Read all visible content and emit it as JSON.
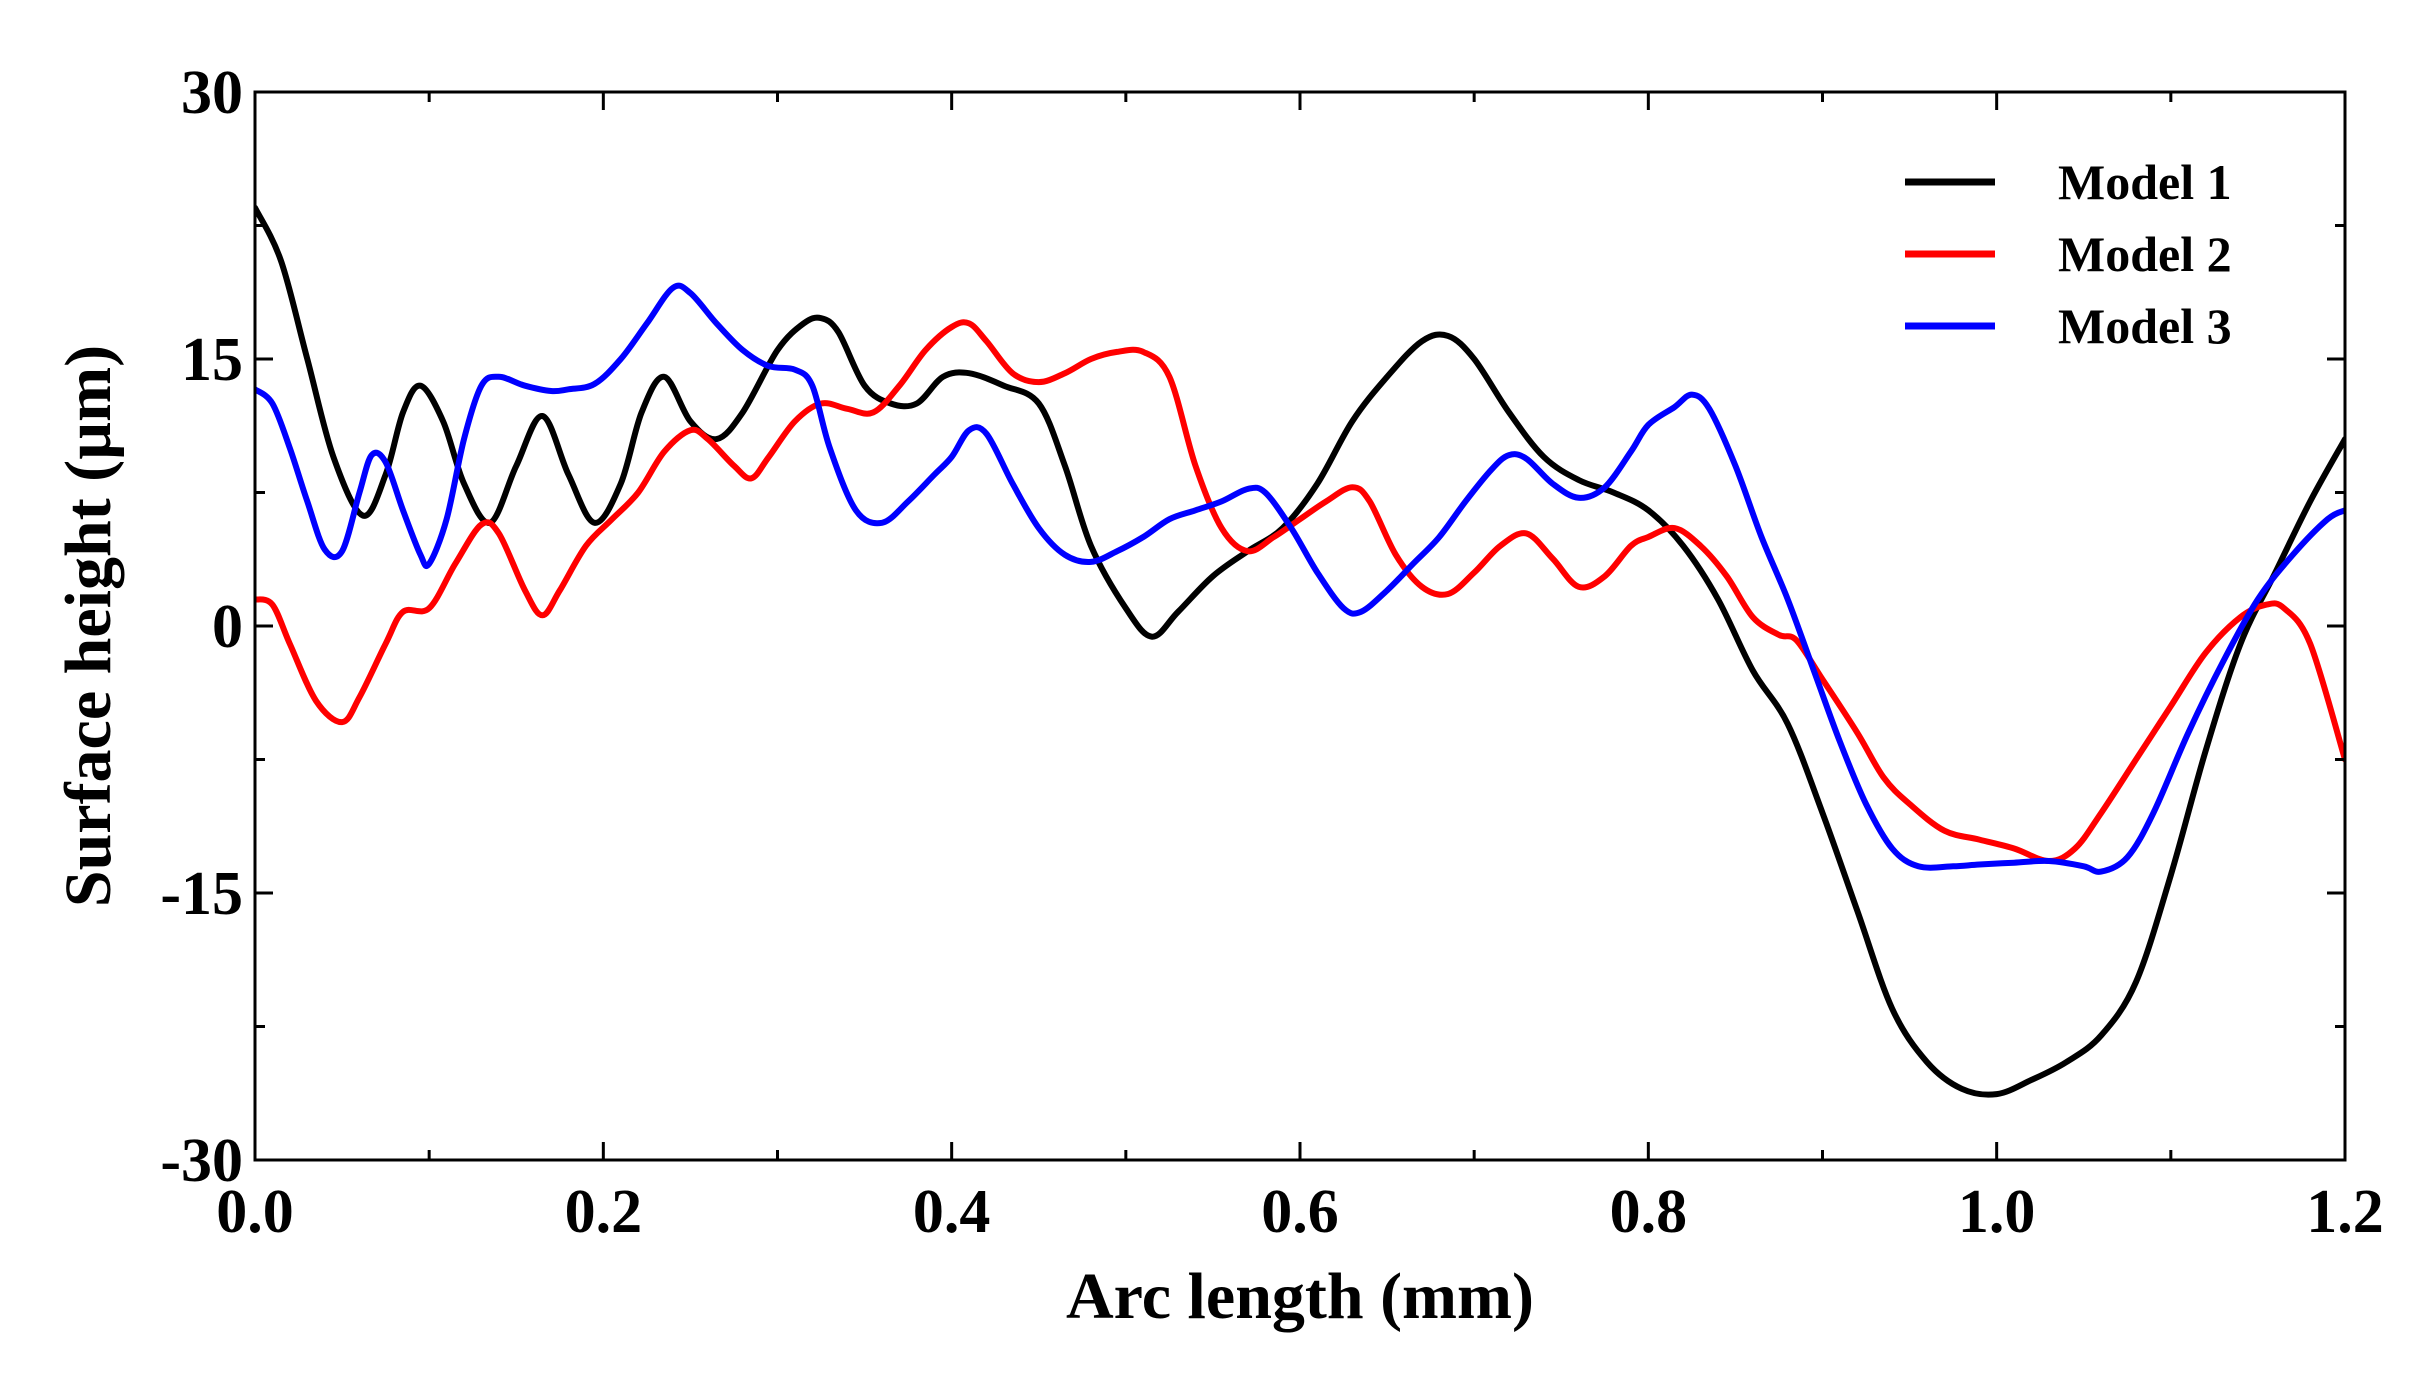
{
  "chart_data": {
    "type": "line",
    "title": "",
    "xlabel": "Arc length (mm)",
    "ylabel": "Surface height (µm)",
    "xlim": [
      0.0,
      1.2
    ],
    "ylim": [
      -30,
      30
    ],
    "xticks": [
      0.0,
      0.2,
      0.4,
      0.6,
      0.8,
      1.0,
      1.2
    ],
    "xtick_labels": [
      "0.0",
      "0.2",
      "0.4",
      "0.6",
      "0.8",
      "1.0",
      "1.2"
    ],
    "yticks": [
      -30,
      -15,
      0,
      15,
      30
    ],
    "ytick_labels": [
      "-30",
      "-15",
      "0",
      "15",
      "30"
    ],
    "grid": false,
    "legend_position": "top-right",
    "series": [
      {
        "name": "Model 1",
        "color": "#000000",
        "points": [
          [
            0.0,
            23.5
          ],
          [
            0.015,
            20.5
          ],
          [
            0.03,
            15
          ],
          [
            0.045,
            9.5
          ],
          [
            0.062,
            6.2
          ],
          [
            0.075,
            8.5
          ],
          [
            0.085,
            12.0
          ],
          [
            0.095,
            13.5
          ],
          [
            0.108,
            11.5
          ],
          [
            0.12,
            8
          ],
          [
            0.135,
            5.8
          ],
          [
            0.15,
            9
          ],
          [
            0.165,
            11.8
          ],
          [
            0.18,
            8.5
          ],
          [
            0.195,
            5.8
          ],
          [
            0.21,
            8
          ],
          [
            0.222,
            12.0
          ],
          [
            0.235,
            14.0
          ],
          [
            0.25,
            11.5
          ],
          [
            0.265,
            10.5
          ],
          [
            0.28,
            12
          ],
          [
            0.3,
            15.5
          ],
          [
            0.315,
            17.0
          ],
          [
            0.325,
            17.3
          ],
          [
            0.335,
            16.5
          ],
          [
            0.35,
            13.5
          ],
          [
            0.365,
            12.5
          ],
          [
            0.38,
            12.5
          ],
          [
            0.395,
            14
          ],
          [
            0.41,
            14.2
          ],
          [
            0.43,
            13.5
          ],
          [
            0.45,
            12.5
          ],
          [
            0.465,
            9
          ],
          [
            0.48,
            4.5
          ],
          [
            0.5,
            1.0
          ],
          [
            0.515,
            -0.6
          ],
          [
            0.53,
            0.8
          ],
          [
            0.55,
            2.8
          ],
          [
            0.57,
            4.2
          ],
          [
            0.59,
            5.5
          ],
          [
            0.61,
            8
          ],
          [
            0.63,
            11.5
          ],
          [
            0.65,
            14
          ],
          [
            0.67,
            16
          ],
          [
            0.685,
            16.3
          ],
          [
            0.7,
            15
          ],
          [
            0.72,
            12
          ],
          [
            0.74,
            9.5
          ],
          [
            0.76,
            8.2
          ],
          [
            0.78,
            7.5
          ],
          [
            0.8,
            6.5
          ],
          [
            0.82,
            4.5
          ],
          [
            0.84,
            1.5
          ],
          [
            0.86,
            -2.5
          ],
          [
            0.88,
            -5.5
          ],
          [
            0.9,
            -10.5
          ],
          [
            0.92,
            -16
          ],
          [
            0.94,
            -21.5
          ],
          [
            0.96,
            -24.5
          ],
          [
            0.98,
            -26.0
          ],
          [
            1.0,
            -26.3
          ],
          [
            1.02,
            -25.5
          ],
          [
            1.04,
            -24.5
          ],
          [
            1.06,
            -23
          ],
          [
            1.08,
            -20
          ],
          [
            1.1,
            -14
          ],
          [
            1.12,
            -7
          ],
          [
            1.14,
            -1
          ],
          [
            1.16,
            3
          ],
          [
            1.18,
            7
          ],
          [
            1.2,
            10.5
          ]
        ]
      },
      {
        "name": "Model 2",
        "color": "#ff0000",
        "points": [
          [
            0.0,
            1.5
          ],
          [
            0.01,
            1.2
          ],
          [
            0.02,
            -1
          ],
          [
            0.035,
            -4.2
          ],
          [
            0.05,
            -5.4
          ],
          [
            0.06,
            -4
          ],
          [
            0.075,
            -1
          ],
          [
            0.085,
            0.8
          ],
          [
            0.1,
            1.0
          ],
          [
            0.115,
            3.5
          ],
          [
            0.13,
            5.7
          ],
          [
            0.14,
            5.2
          ],
          [
            0.155,
            2
          ],
          [
            0.165,
            0.6
          ],
          [
            0.175,
            2
          ],
          [
            0.19,
            4.5
          ],
          [
            0.205,
            6.0
          ],
          [
            0.22,
            7.5
          ],
          [
            0.235,
            9.8
          ],
          [
            0.25,
            11.0
          ],
          [
            0.26,
            10.5
          ],
          [
            0.275,
            9
          ],
          [
            0.285,
            8.3
          ],
          [
            0.295,
            9.5
          ],
          [
            0.31,
            11.5
          ],
          [
            0.325,
            12.5
          ],
          [
            0.34,
            12.2
          ],
          [
            0.355,
            12
          ],
          [
            0.37,
            13.5
          ],
          [
            0.385,
            15.5
          ],
          [
            0.4,
            16.8
          ],
          [
            0.41,
            17.0
          ],
          [
            0.42,
            16.0
          ],
          [
            0.435,
            14.2
          ],
          [
            0.45,
            13.7
          ],
          [
            0.465,
            14.2
          ],
          [
            0.48,
            15
          ],
          [
            0.495,
            15.4
          ],
          [
            0.51,
            15.4
          ],
          [
            0.525,
            14
          ],
          [
            0.54,
            9
          ],
          [
            0.555,
            5.5
          ],
          [
            0.57,
            4.2
          ],
          [
            0.585,
            5
          ],
          [
            0.6,
            6
          ],
          [
            0.615,
            7
          ],
          [
            0.63,
            7.8
          ],
          [
            0.64,
            7
          ],
          [
            0.655,
            4
          ],
          [
            0.67,
            2.2
          ],
          [
            0.685,
            1.8
          ],
          [
            0.7,
            3
          ],
          [
            0.715,
            4.5
          ],
          [
            0.73,
            5.2
          ],
          [
            0.745,
            3.8
          ],
          [
            0.76,
            2.2
          ],
          [
            0.775,
            2.8
          ],
          [
            0.79,
            4.5
          ],
          [
            0.8,
            5
          ],
          [
            0.815,
            5.5
          ],
          [
            0.83,
            4.5
          ],
          [
            0.845,
            2.8
          ],
          [
            0.86,
            0.5
          ],
          [
            0.875,
            -0.5
          ],
          [
            0.885,
            -0.8
          ],
          [
            0.9,
            -3
          ],
          [
            0.92,
            -6
          ],
          [
            0.935,
            -8.5
          ],
          [
            0.95,
            -10
          ],
          [
            0.97,
            -11.5
          ],
          [
            0.99,
            -12
          ],
          [
            1.01,
            -12.5
          ],
          [
            1.03,
            -13.2
          ],
          [
            1.045,
            -12.5
          ],
          [
            1.06,
            -10.5
          ],
          [
            1.08,
            -7.5
          ],
          [
            1.1,
            -4.5
          ],
          [
            1.12,
            -1.5
          ],
          [
            1.14,
            0.5
          ],
          [
            1.155,
            1.2
          ],
          [
            1.165,
            1.0
          ],
          [
            1.18,
            -1
          ],
          [
            1.2,
            -7.5
          ]
        ]
      },
      {
        "name": "Model 3",
        "color": "#0000ff",
        "points": [
          [
            0.0,
            13.3
          ],
          [
            0.01,
            12.5
          ],
          [
            0.02,
            10
          ],
          [
            0.03,
            7
          ],
          [
            0.04,
            4.3
          ],
          [
            0.05,
            4.2
          ],
          [
            0.06,
            7.5
          ],
          [
            0.067,
            9.6
          ],
          [
            0.075,
            9.2
          ],
          [
            0.085,
            6.5
          ],
          [
            0.095,
            4
          ],
          [
            0.1,
            3.5
          ],
          [
            0.11,
            6
          ],
          [
            0.12,
            10.5
          ],
          [
            0.13,
            13.5
          ],
          [
            0.14,
            14.0
          ],
          [
            0.155,
            13.5
          ],
          [
            0.17,
            13.2
          ],
          [
            0.18,
            13.3
          ],
          [
            0.195,
            13.6
          ],
          [
            0.21,
            15
          ],
          [
            0.225,
            17
          ],
          [
            0.24,
            19.0
          ],
          [
            0.25,
            18.7
          ],
          [
            0.265,
            17
          ],
          [
            0.28,
            15.5
          ],
          [
            0.295,
            14.6
          ],
          [
            0.31,
            14.4
          ],
          [
            0.32,
            13.5
          ],
          [
            0.33,
            10
          ],
          [
            0.345,
            6.5
          ],
          [
            0.36,
            5.8
          ],
          [
            0.375,
            7
          ],
          [
            0.39,
            8.5
          ],
          [
            0.4,
            9.5
          ],
          [
            0.41,
            11.0
          ],
          [
            0.42,
            10.8
          ],
          [
            0.435,
            8
          ],
          [
            0.45,
            5.5
          ],
          [
            0.465,
            4.0
          ],
          [
            0.48,
            3.6
          ],
          [
            0.495,
            4.2
          ],
          [
            0.51,
            5
          ],
          [
            0.525,
            6
          ],
          [
            0.54,
            6.5
          ],
          [
            0.555,
            7
          ],
          [
            0.57,
            7.7
          ],
          [
            0.58,
            7.5
          ],
          [
            0.595,
            5.5
          ],
          [
            0.61,
            3
          ],
          [
            0.625,
            1.0
          ],
          [
            0.635,
            0.8
          ],
          [
            0.65,
            2
          ],
          [
            0.665,
            3.5
          ],
          [
            0.68,
            5
          ],
          [
            0.695,
            7
          ],
          [
            0.71,
            8.8
          ],
          [
            0.72,
            9.6
          ],
          [
            0.73,
            9.4
          ],
          [
            0.745,
            8
          ],
          [
            0.76,
            7.2
          ],
          [
            0.775,
            7.8
          ],
          [
            0.79,
            9.8
          ],
          [
            0.8,
            11.3
          ],
          [
            0.815,
            12.3
          ],
          [
            0.825,
            13.0
          ],
          [
            0.835,
            12.2
          ],
          [
            0.85,
            9
          ],
          [
            0.865,
            5
          ],
          [
            0.88,
            1.5
          ],
          [
            0.895,
            -2.5
          ],
          [
            0.91,
            -6.5
          ],
          [
            0.925,
            -10
          ],
          [
            0.94,
            -12.5
          ],
          [
            0.955,
            -13.5
          ],
          [
            0.975,
            -13.5
          ],
          [
            0.99,
            -13.4
          ],
          [
            1.01,
            -13.3
          ],
          [
            1.03,
            -13.2
          ],
          [
            1.05,
            -13.5
          ],
          [
            1.06,
            -13.8
          ],
          [
            1.075,
            -13
          ],
          [
            1.09,
            -10.5
          ],
          [
            1.11,
            -6
          ],
          [
            1.13,
            -2
          ],
          [
            1.15,
            1.5
          ],
          [
            1.17,
            4
          ],
          [
            1.19,
            6
          ],
          [
            1.2,
            6.5
          ]
        ]
      }
    ]
  }
}
